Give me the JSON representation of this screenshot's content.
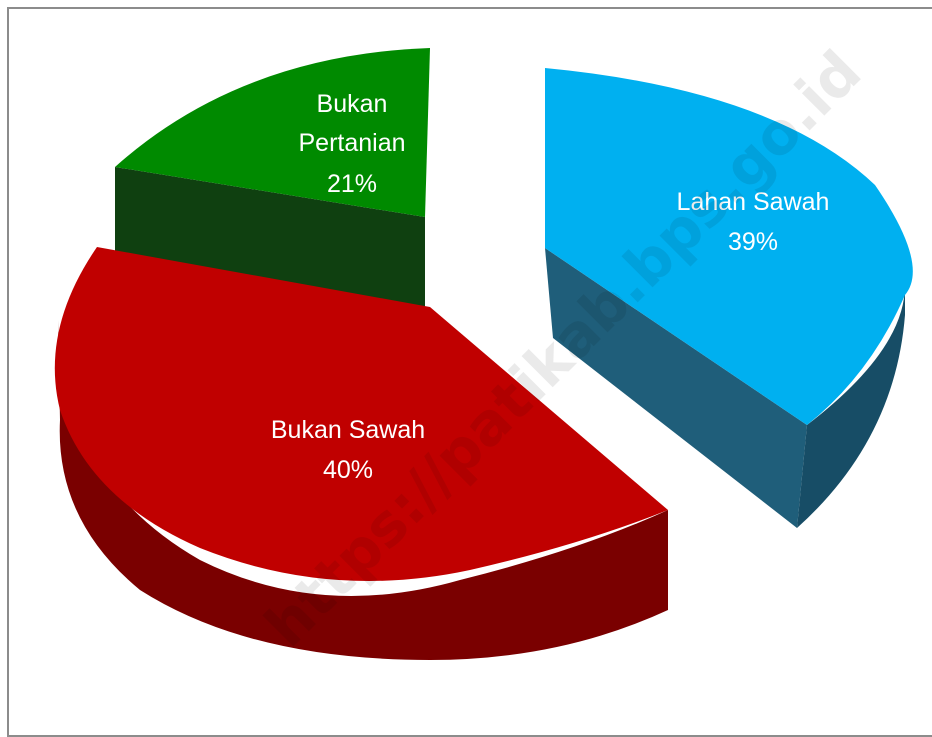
{
  "chart_data": {
    "type": "pie",
    "style": "3d-exploded",
    "legend": "none",
    "categories": [
      "Lahan Sawah",
      "Bukan Sawah",
      "Bukan Pertanian"
    ],
    "values": [
      39,
      40,
      21
    ],
    "unit": "%",
    "colors": {
      "Lahan Sawah": {
        "top": "#00b0f0",
        "side": "#1f5e7a"
      },
      "Bukan Sawah": {
        "top": "#c00000",
        "side": "#7a0000"
      },
      "Bukan Pertanian": {
        "top": "#008a00",
        "side": "#0f4010"
      }
    },
    "labels": [
      {
        "lines": [
          "Lahan Sawah",
          "39%"
        ]
      },
      {
        "lines": [
          "Bukan Sawah",
          "40%"
        ]
      },
      {
        "lines": [
          "Bukan",
          "Pertanian",
          "21%"
        ]
      }
    ]
  },
  "watermark": "https://patikab.bps.go.id"
}
